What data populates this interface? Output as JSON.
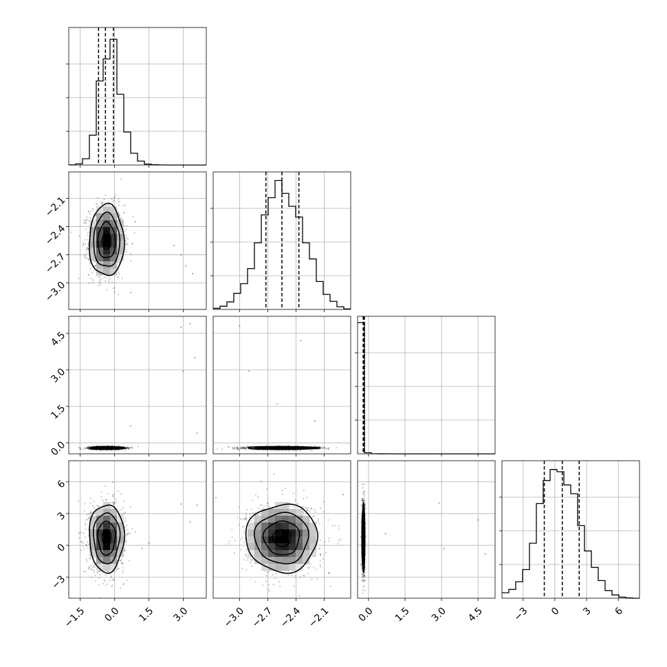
{
  "chart_data": {
    "type": "corner",
    "n_params": 4,
    "param_ranges": [
      [
        -2.0,
        4.0
      ],
      [
        -3.28,
        -1.82
      ],
      [
        -0.45,
        5.2
      ],
      [
        -5.0,
        8.0
      ]
    ],
    "x_ticks": [
      {
        "values": [
          -1.5,
          0.0,
          1.5,
          3.0
        ],
        "labels": [
          "−1.5",
          "0.0",
          "1.5",
          "3.0"
        ]
      },
      {
        "values": [
          -3.0,
          -2.7,
          -2.4,
          -2.1
        ],
        "labels": [
          "−3.0",
          "−2.7",
          "−2.4",
          "−2.1"
        ]
      },
      {
        "values": [
          0.0,
          1.5,
          3.0,
          4.5
        ],
        "labels": [
          "0.0",
          "1.5",
          "3.0",
          "4.5"
        ]
      },
      {
        "values": [
          -3,
          0,
          3,
          6
        ],
        "labels": [
          "−3",
          "0",
          "3",
          "6"
        ]
      }
    ],
    "y_ticks": [
      null,
      {
        "values": [
          -2.1,
          -2.4,
          -2.7,
          -3.0
        ],
        "labels": [
          "−2.1",
          "−2.4",
          "−2.7",
          "−3.0"
        ]
      },
      {
        "values": [
          4.5,
          3.0,
          1.5,
          0.0
        ],
        "labels": [
          "4.5",
          "3.0",
          "1.5",
          "0.0"
        ]
      },
      {
        "values": [
          6,
          3,
          0,
          -3
        ],
        "labels": [
          "6",
          "3",
          "0",
          "−3"
        ]
      }
    ],
    "marginals": [
      {
        "param": 0,
        "bin_edges": [
          -2.0,
          -1.7,
          -1.4,
          -1.1,
          -0.8,
          -0.5,
          -0.2,
          0.1,
          0.4,
          0.7,
          1.0,
          1.3,
          1.6,
          1.9,
          2.2,
          2.5,
          2.8,
          3.1,
          3.4,
          3.7,
          4.0
        ],
        "counts": [
          2,
          15,
          80,
          380,
          1070,
          1350,
          1600,
          900,
          420,
          150,
          50,
          12,
          4,
          1,
          0,
          0,
          0,
          0,
          0,
          0
        ],
        "ymax": 1750,
        "quantiles": [
          -0.7,
          -0.4,
          -0.05
        ]
      },
      {
        "param": 1,
        "bin_edges": [
          -3.28,
          -3.207,
          -3.134,
          -3.061,
          -2.988,
          -2.915,
          -2.842,
          -2.769,
          -2.696,
          -2.623,
          -2.55,
          -2.477,
          -2.404,
          -2.331,
          -2.258,
          -2.185,
          -2.112,
          -2.039,
          -1.966,
          -1.893,
          -1.82
        ],
        "counts": [
          10,
          30,
          70,
          150,
          240,
          380,
          620,
          880,
          1040,
          1200,
          1080,
          960,
          860,
          620,
          470,
          260,
          140,
          75,
          25,
          5
        ],
        "ymax": 1280,
        "quantiles": [
          -2.72,
          -2.55,
          -2.37
        ]
      },
      {
        "param": 2,
        "bin_edges": [
          -0.45,
          -0.1675,
          0.115,
          0.3975,
          0.68,
          0.9625,
          1.245,
          1.5275,
          1.81,
          2.0925,
          2.375,
          2.6575,
          2.94,
          3.2225,
          3.505,
          3.7875,
          4.07,
          4.3525,
          4.635,
          4.9175,
          5.2
        ],
        "counts": [
          9400,
          80,
          8,
          2,
          1,
          0,
          0,
          0,
          0,
          0,
          0,
          0,
          0,
          0,
          0,
          0,
          0,
          0,
          0,
          0
        ],
        "ymax": 9850,
        "quantiles": [
          -0.22,
          -0.2,
          -0.17
        ]
      },
      {
        "param": 3,
        "bin_edges": [
          -5.0,
          -4.35,
          -3.7,
          -3.05,
          -2.4,
          -1.75,
          -1.1,
          -0.45,
          0.2,
          0.85,
          1.5,
          2.15,
          2.8,
          3.45,
          4.1,
          4.75,
          5.4,
          6.05,
          6.7,
          7.35,
          8.0
        ],
        "counts": [
          50,
          80,
          150,
          260,
          500,
          860,
          1070,
          1170,
          1150,
          1030,
          950,
          660,
          430,
          280,
          160,
          70,
          30,
          10,
          3,
          0
        ],
        "ymax": 1250,
        "quantiles": [
          -1.0,
          0.7,
          2.3
        ]
      }
    ],
    "joint_2d": [
      {
        "x": 0,
        "y": 1,
        "center": [
          -0.35,
          -2.55
        ],
        "spread": [
          0.38,
          0.19
        ],
        "outliers": [
          [
            2.9,
            -2.7
          ],
          [
            3.1,
            -2.82
          ],
          [
            2.6,
            -2.6
          ],
          [
            0.9,
            -2.35
          ],
          [
            3.4,
            -2.9
          ],
          [
            0.7,
            -3.1
          ]
        ]
      },
      {
        "x": 0,
        "y": 2,
        "center": [
          -0.35,
          -0.21
        ],
        "spread": [
          0.38,
          0.03
        ],
        "outliers": [
          [
            2.9,
            4.75
          ],
          [
            3.3,
            4.9
          ],
          [
            3.5,
            3.5
          ],
          [
            3.0,
            2.95
          ],
          [
            0.7,
            0.7
          ],
          [
            3.6,
            0.4
          ]
        ]
      },
      {
        "x": 1,
        "y": 2,
        "center": [
          -2.55,
          -0.21
        ],
        "spread": [
          0.19,
          0.03
        ],
        "outliers": [
          [
            -3.0,
            4.8
          ],
          [
            -2.9,
            2.95
          ],
          [
            -2.35,
            4.2
          ],
          [
            -2.6,
            1.6
          ],
          [
            -2.2,
            0.9
          ]
        ]
      },
      {
        "x": 0,
        "y": 3,
        "center": [
          -0.35,
          0.7
        ],
        "spread": [
          0.38,
          1.6
        ],
        "outliers": [
          [
            2.9,
            3.9
          ],
          [
            3.3,
            2.2
          ],
          [
            3.6,
            3.8
          ],
          [
            1.5,
            0.2
          ],
          [
            1.2,
            -0.3
          ]
        ]
      },
      {
        "x": 1,
        "y": 3,
        "center": [
          -2.55,
          0.7
        ],
        "spread": [
          0.19,
          1.6
        ],
        "outliers": [
          [
            -3.25,
            4.5
          ],
          [
            -1.9,
            4.8
          ],
          [
            -2.05,
            -2.6
          ]
        ]
      },
      {
        "x": 2,
        "y": 3,
        "center": [
          -0.21,
          0.7
        ],
        "spread": [
          0.03,
          1.6
        ],
        "outliers": [
          [
            2.9,
            4.0
          ],
          [
            4.5,
            2.4
          ],
          [
            0.7,
            1.1
          ],
          [
            3.1,
            -0.3
          ],
          [
            4.8,
            -0.8
          ]
        ]
      }
    ],
    "contour_levels_sigma": [
      0.5,
      1.0,
      1.5,
      2.0
    ],
    "colors": {
      "line": "#000000",
      "grid": "#b0b0b0",
      "density_high": "#000000",
      "density_low": "#ffffff"
    }
  }
}
